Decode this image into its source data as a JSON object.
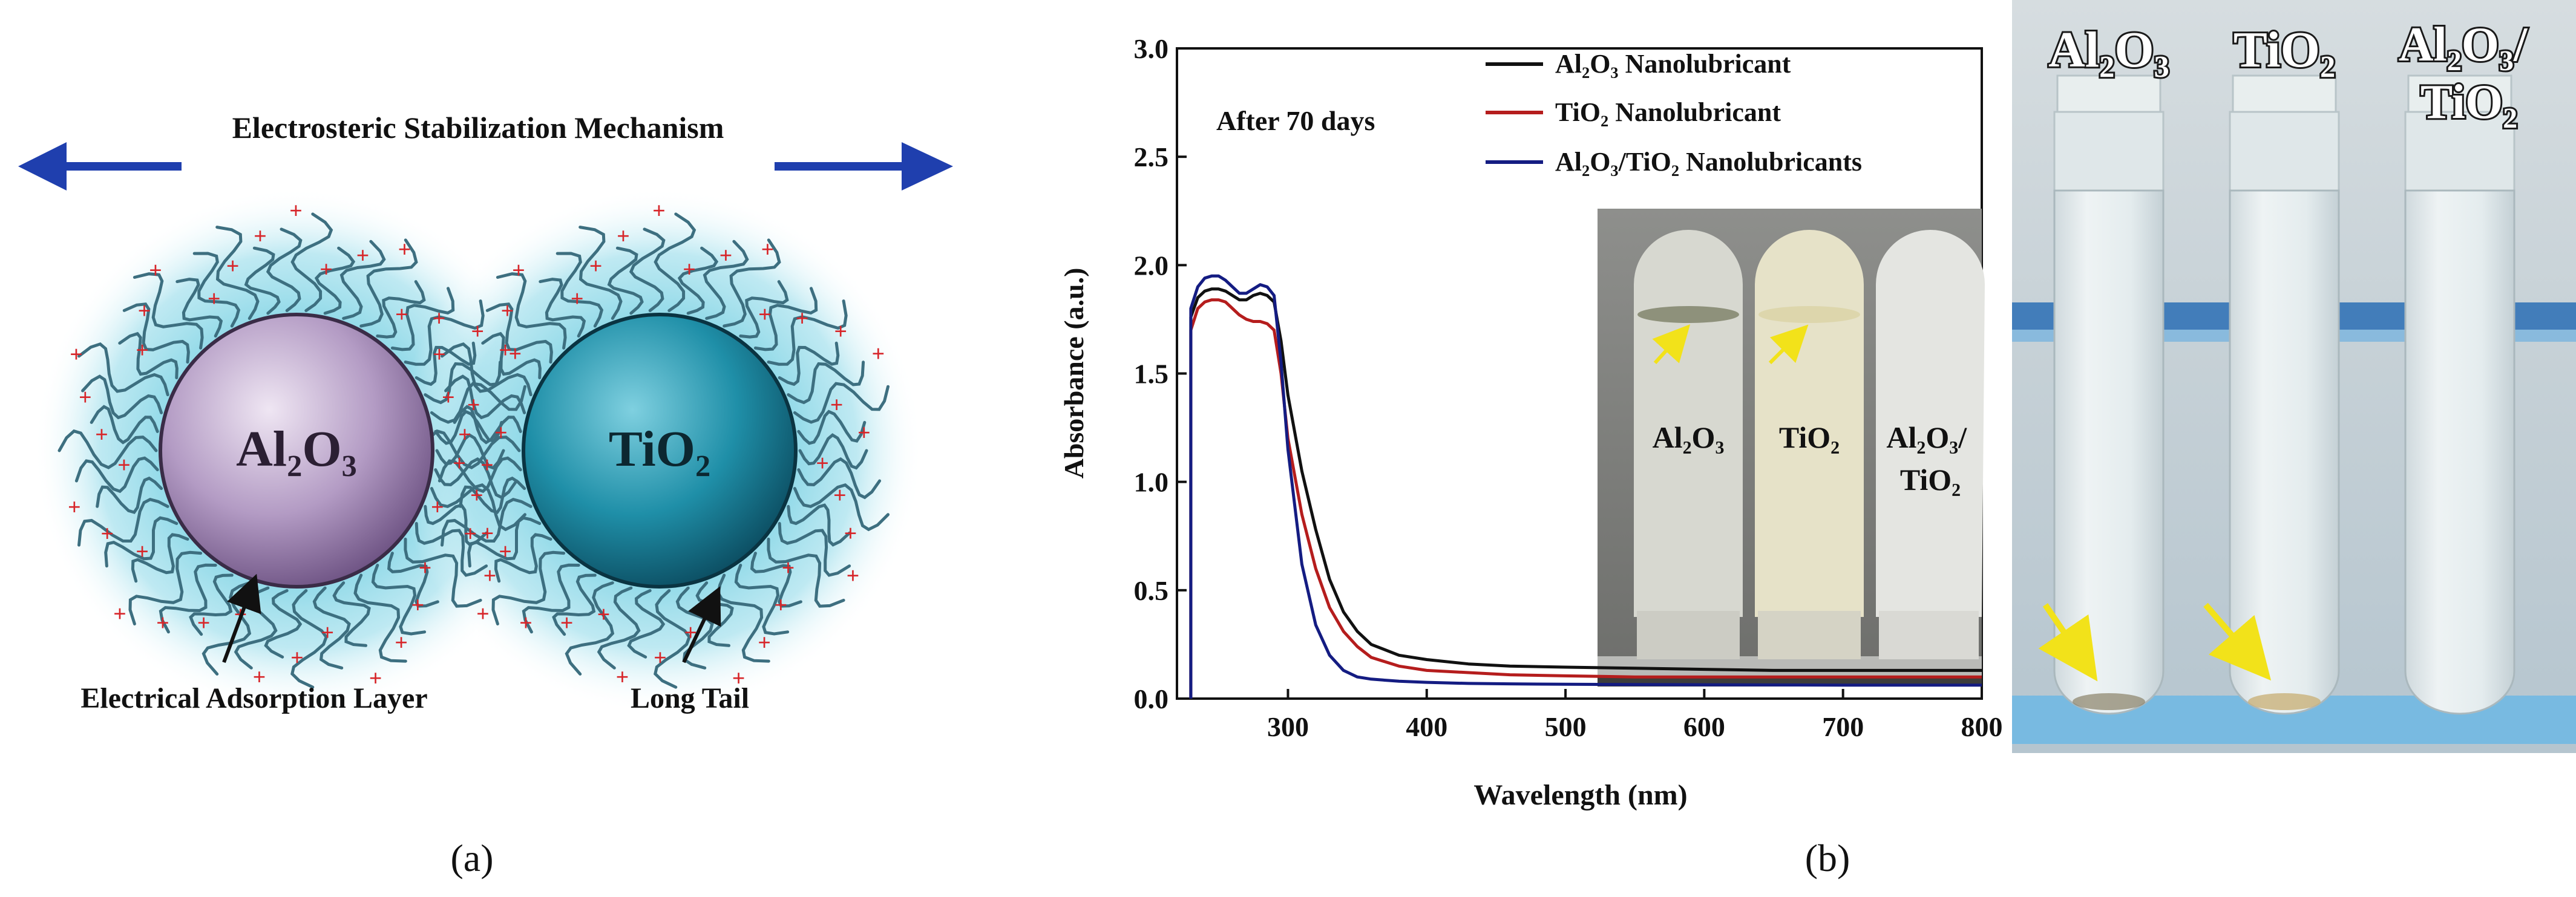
{
  "panel_a": {
    "title": "Electrosteric Stabilization Mechanism",
    "particle_left": {
      "label": "Al₂O₃",
      "color": "#9a7fae"
    },
    "particle_right": {
      "label": "TiO₂",
      "color": "#1f7f98"
    },
    "labels": {
      "electrical_layer": "Electrical Adsorption Layer",
      "long_tail": "Long Tail"
    },
    "arrow_color": "#1f3fae",
    "charge_symbol": "+",
    "caption": "(a)"
  },
  "panel_b": {
    "caption": "(b)",
    "annotation": "After 70 days",
    "inset_labels": [
      "Al₂O₃",
      "TiO₂",
      "Al₂O₃/\nTiO₂"
    ]
  },
  "photo_right": {
    "tube_labels": [
      "Al₂O₃",
      "TiO₂",
      "Al₂O₃/\nTiO₂"
    ]
  },
  "chart_data": {
    "type": "line",
    "title": "",
    "xlabel": "Wavelength (nm)",
    "ylabel": "Absorbance (a.u.)",
    "xlim": [
      220,
      800
    ],
    "ylim": [
      0,
      3.0
    ],
    "xticks": [
      "300",
      "400",
      "500",
      "600",
      "700",
      "800"
    ],
    "yticks": [
      "0.0",
      "0.5",
      "1.0",
      "1.5",
      "2.0",
      "2.5",
      "3.0"
    ],
    "x": [
      230,
      235,
      240,
      245,
      250,
      255,
      260,
      265,
      270,
      275,
      280,
      285,
      290,
      295,
      300,
      310,
      320,
      330,
      340,
      350,
      360,
      380,
      400,
      430,
      460,
      500,
      550,
      600,
      650,
      700,
      750,
      800
    ],
    "series": [
      {
        "name": "Al₂O₃ Nanolubricant",
        "color": "#111111",
        "values": [
          1.76,
          1.85,
          1.88,
          1.89,
          1.89,
          1.88,
          1.86,
          1.84,
          1.84,
          1.86,
          1.87,
          1.86,
          1.83,
          1.65,
          1.4,
          1.05,
          0.78,
          0.55,
          0.4,
          0.31,
          0.25,
          0.2,
          0.18,
          0.16,
          0.15,
          0.145,
          0.14,
          0.135,
          0.13,
          0.13,
          0.13,
          0.13
        ]
      },
      {
        "name": "TiO₂ Nanolubricant",
        "color": "#b51d1d",
        "values": [
          1.7,
          1.8,
          1.83,
          1.84,
          1.84,
          1.83,
          1.8,
          1.77,
          1.75,
          1.74,
          1.74,
          1.73,
          1.7,
          1.5,
          1.2,
          0.85,
          0.6,
          0.42,
          0.31,
          0.24,
          0.19,
          0.15,
          0.13,
          0.12,
          0.11,
          0.105,
          0.1,
          0.1,
          0.1,
          0.1,
          0.1,
          0.1
        ]
      },
      {
        "name": "Al₂O₃/TiO₂ Nanolubricants",
        "color": "#141c82",
        "values": [
          1.8,
          1.9,
          1.94,
          1.95,
          1.95,
          1.93,
          1.9,
          1.87,
          1.87,
          1.89,
          1.91,
          1.9,
          1.86,
          1.55,
          1.15,
          0.62,
          0.34,
          0.2,
          0.13,
          0.1,
          0.09,
          0.08,
          0.075,
          0.07,
          0.068,
          0.066,
          0.065,
          0.064,
          0.063,
          0.062,
          0.062,
          0.062
        ]
      }
    ],
    "legend": "top-right"
  }
}
